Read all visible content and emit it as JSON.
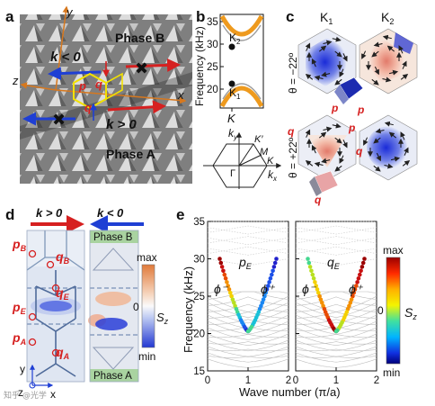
{
  "panels": {
    "a": "a",
    "b": "b",
    "c": "c",
    "d": "d",
    "e": "e"
  },
  "panel_a": {
    "phase_b": "Phase B",
    "phase_a": "Phase A",
    "k_neg": "k < 0",
    "k_pos": "k > 0",
    "axis_x": "x",
    "axis_y": "y",
    "axis_z": "z",
    "p": "p",
    "q": "q"
  },
  "panel_b": {
    "ylabel": "Frequency (kHz)",
    "yticks": [
      "35",
      "30",
      "25",
      "20"
    ],
    "xtick": "K",
    "k2": "K",
    "k2_sub": "2",
    "k1": "K",
    "k1_sub": "1",
    "bz": {
      "ky": "k",
      "ky_sub": "y",
      "kx": "k",
      "kx_sub": "x",
      "kp": "K′",
      "m": "M",
      "k": "K",
      "gamma": "Γ"
    }
  },
  "panel_c": {
    "col1": "K",
    "col1_sub": "1",
    "col2": "K",
    "col2_sub": "2",
    "row1": "θ = −22º",
    "row2": "θ = +22º",
    "p": "p",
    "q": "q"
  },
  "panel_d": {
    "k_pos": "k > 0",
    "k_neg": "k < 0",
    "phase_b": "Phase B",
    "phase_a": "Phase A",
    "labels": [
      "p",
      "q",
      "p",
      "q",
      "p",
      "q"
    ],
    "subs": [
      "B",
      "B",
      "E",
      "E",
      "A",
      "A"
    ],
    "cb_max": "max",
    "cb_zero": "0",
    "cb_min": "min",
    "cb_label": "S",
    "cb_label_sub": "z",
    "axis_y": "y",
    "axis_x": "x",
    "axis_z": "z"
  },
  "panel_e": {
    "ylabel": "Frequency (kHz)",
    "xlabel": "Wave number (π/a)",
    "yticks": [
      "35",
      "30",
      "25",
      "20",
      "15"
    ],
    "xticks": [
      "0",
      "1",
      "2"
    ],
    "left_label": "p",
    "left_label_sub": "E",
    "right_label": "q",
    "right_label_sub": "E",
    "phi_minus": "ϕ⁻",
    "phi_plus": "ϕ⁺",
    "cb_max": "max",
    "cb_zero": "0",
    "cb_min": "min",
    "cb_label": "S",
    "cb_label_sub": "z"
  },
  "watermark": "知乎 @光学",
  "colors": {
    "accent_red": "#d62020",
    "edge_band": "#ee9a1e",
    "arrow_blue": "#1f3fd4"
  }
}
